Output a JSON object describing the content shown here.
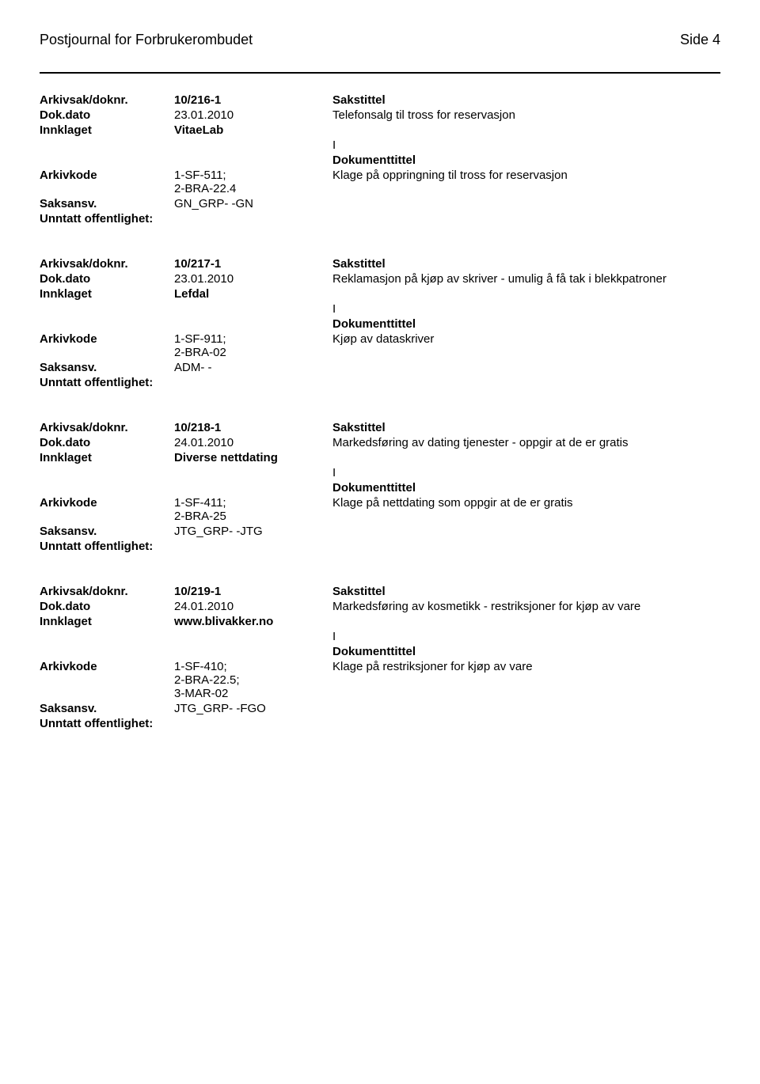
{
  "header": {
    "title": "Postjournal for Forbrukerombudet",
    "page": "Side 4"
  },
  "labels": {
    "arkivsak": "Arkivsak/doknr.",
    "dokdato": "Dok.dato",
    "innklaget": "Innklaget",
    "arkivkode": "Arkivkode",
    "saksansv": "Saksansv.",
    "unntatt": "Unntatt offentlighet:",
    "sakstittel": "Sakstittel",
    "dokumenttittel": "Dokumenttittel",
    "doc_type": "I"
  },
  "records": [
    {
      "doknr": "10/216-1",
      "dokdato": "23.01.2010",
      "sakstittel_text": "Telefonsalg til tross for reservasjon",
      "innklaget": "VitaeLab",
      "arkivkode": "1-SF-511;\n2-BRA-22.4",
      "dokument_text": "Klage på oppringning til tross for reservasjon",
      "saksansv": "GN_GRP- -GN"
    },
    {
      "doknr": "10/217-1",
      "dokdato": "23.01.2010",
      "sakstittel_text": "Reklamasjon på kjøp av skriver - umulig å få tak i blekkpatroner",
      "innklaget": "Lefdal",
      "arkivkode": "1-SF-911;\n2-BRA-02",
      "dokument_text": "Kjøp av dataskriver",
      "saksansv": "ADM- -"
    },
    {
      "doknr": "10/218-1",
      "dokdato": "24.01.2010",
      "sakstittel_text": "Markedsføring av dating tjenester - oppgir at de er gratis",
      "innklaget": "Diverse nettdating",
      "arkivkode": "1-SF-411;\n2-BRA-25",
      "dokument_text": "Klage på nettdating som oppgir at de er gratis",
      "saksansv": "JTG_GRP- -JTG"
    },
    {
      "doknr": "10/219-1",
      "dokdato": "24.01.2010",
      "sakstittel_text": "Markedsføring av kosmetikk - restriksjoner for kjøp av vare",
      "innklaget": "www.blivakker.no",
      "arkivkode": "1-SF-410;\n2-BRA-22.5;\n3-MAR-02",
      "dokument_text": "Klage på restriksjoner for kjøp av vare",
      "saksansv": "JTG_GRP- -FGO"
    }
  ]
}
